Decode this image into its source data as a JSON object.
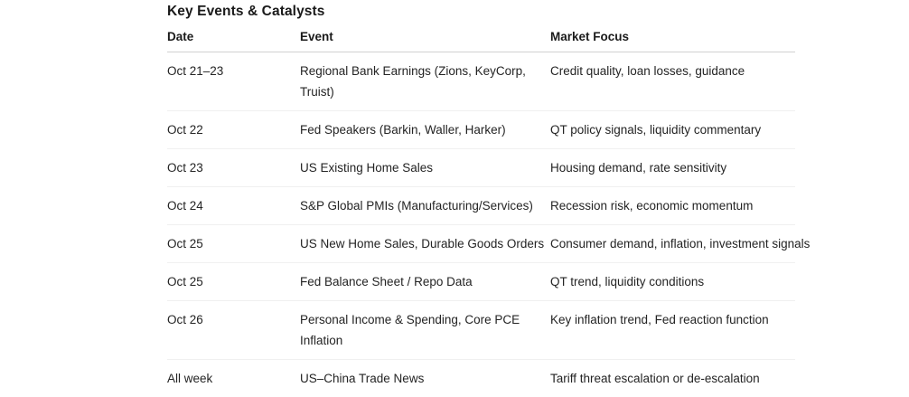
{
  "section": {
    "title": "Key Events & Catalysts"
  },
  "table": {
    "columns": [
      {
        "key": "date",
        "label": "Date"
      },
      {
        "key": "event",
        "label": "Event"
      },
      {
        "key": "market_focus",
        "label": "Market Focus"
      }
    ],
    "rows": [
      {
        "date": "Oct 21–23",
        "event": "Regional Bank Earnings (Zions, KeyCorp, Truist)",
        "market_focus": "Credit quality, loan losses, guidance"
      },
      {
        "date": "Oct 22",
        "event": "Fed Speakers (Barkin, Waller, Harker)",
        "market_focus": "QT policy signals, liquidity commentary"
      },
      {
        "date": "Oct 23",
        "event": "US Existing Home Sales",
        "market_focus": "Housing demand, rate sensitivity"
      },
      {
        "date": "Oct 24",
        "event": "S&P Global PMIs (Manufacturing/Services)",
        "market_focus": "Recession risk, economic momentum"
      },
      {
        "date": "Oct 25",
        "event": "US New Home Sales, Durable Goods Orders",
        "market_focus": "Consumer demand, inflation, investment signals"
      },
      {
        "date": "Oct 25",
        "event": "Fed Balance Sheet / Repo Data",
        "market_focus": "QT trend, liquidity conditions"
      },
      {
        "date": "Oct 26",
        "event": "Personal Income & Spending, Core PCE Inflation",
        "market_focus": "Key inflation trend, Fed reaction function"
      },
      {
        "date": "All week",
        "event": "US–China Trade News",
        "market_focus": "Tariff threat escalation or de-escalation"
      }
    ]
  },
  "colors": {
    "background": "#ffffff",
    "text": "#242424",
    "heading": "#1a1a1a",
    "header_border": "#d1d1d1",
    "row_border": "#f0f0f0"
  }
}
